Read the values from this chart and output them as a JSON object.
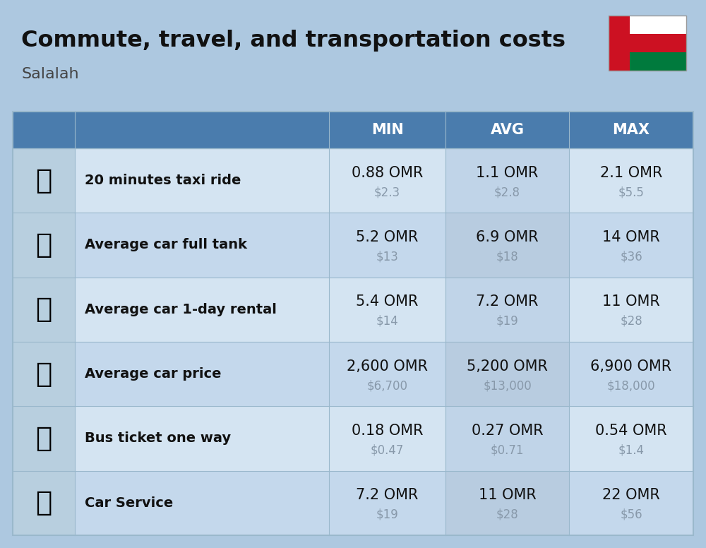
{
  "title": "Commute, travel, and transportation costs",
  "subtitle": "Salalah",
  "bg_color": "#adc8e0",
  "header_bg": "#4a7cad",
  "header_text": "#ffffff",
  "row_colors": [
    "#d4e4f2",
    "#c4d8ec"
  ],
  "avg_col_color": "#c0d4e8",
  "icon_col_color": "#b8cfdf",
  "divider_color": "#9ab8cc",
  "label_color": "#111111",
  "value_color": "#111111",
  "usd_color": "#8899aa",
  "title_fontsize": 23,
  "subtitle_fontsize": 16,
  "header_fontsize": 15,
  "label_fontsize": 14,
  "value_fontsize": 15,
  "usd_fontsize": 12,
  "rows": [
    {
      "label": "20 minutes taxi ride",
      "min_omr": "0.88 OMR",
      "min_usd": "$2.3",
      "avg_omr": "1.1 OMR",
      "avg_usd": "$2.8",
      "max_omr": "2.1 OMR",
      "max_usd": "$5.5"
    },
    {
      "label": "Average car full tank",
      "min_omr": "5.2 OMR",
      "min_usd": "$13",
      "avg_omr": "6.9 OMR",
      "avg_usd": "$18",
      "max_omr": "14 OMR",
      "max_usd": "$36"
    },
    {
      "label": "Average car 1-day rental",
      "min_omr": "5.4 OMR",
      "min_usd": "$14",
      "avg_omr": "7.2 OMR",
      "avg_usd": "$19",
      "max_omr": "11 OMR",
      "max_usd": "$28"
    },
    {
      "label": "Average car price",
      "min_omr": "2,600 OMR",
      "min_usd": "$6,700",
      "avg_omr": "5,200 OMR",
      "avg_usd": "$13,000",
      "max_omr": "6,900 OMR",
      "max_usd": "$18,000"
    },
    {
      "label": "Bus ticket one way",
      "min_omr": "0.18 OMR",
      "min_usd": "$0.47",
      "avg_omr": "0.27 OMR",
      "avg_usd": "$0.71",
      "max_omr": "0.54 OMR",
      "max_usd": "$1.4"
    },
    {
      "label": "Car Service",
      "min_omr": "7.2 OMR",
      "min_usd": "$19",
      "avg_omr": "11 OMR",
      "avg_usd": "$28",
      "max_omr": "22 OMR",
      "max_usd": "$56"
    }
  ]
}
